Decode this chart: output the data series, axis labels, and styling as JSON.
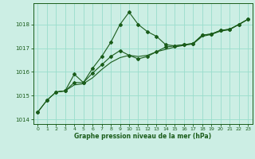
{
  "title": "Graphe pression niveau de la mer (hPa)",
  "bg_color": "#cceee4",
  "grid_color": "#99ddcc",
  "line_color": "#1a5c1a",
  "xlim": [
    -0.5,
    23.5
  ],
  "ylim": [
    1013.8,
    1018.9
  ],
  "yticks": [
    1014,
    1015,
    1016,
    1017,
    1018
  ],
  "xticks": [
    0,
    1,
    2,
    3,
    4,
    5,
    6,
    7,
    8,
    9,
    10,
    11,
    12,
    13,
    14,
    15,
    16,
    17,
    18,
    19,
    20,
    21,
    22,
    23
  ],
  "line1_x": [
    0,
    1,
    2,
    3,
    4,
    5,
    6,
    7,
    8,
    9,
    10,
    11,
    12,
    13,
    14,
    15,
    16,
    17,
    18,
    19,
    20,
    21,
    22,
    23
  ],
  "line1_y": [
    1014.3,
    1014.8,
    1015.15,
    1015.2,
    1015.9,
    1015.55,
    1016.15,
    1016.65,
    1017.25,
    1018.0,
    1018.52,
    1018.0,
    1017.7,
    1017.5,
    1017.15,
    1017.1,
    1017.15,
    1017.2,
    1017.55,
    1017.6,
    1017.75,
    1017.8,
    1018.0,
    1018.22
  ],
  "line2_x": [
    0,
    1,
    2,
    3,
    4,
    5,
    6,
    7,
    8,
    9,
    10,
    11,
    12,
    13,
    14,
    15,
    16,
    17,
    18,
    19,
    20,
    21,
    22,
    23
  ],
  "line2_y": [
    1014.3,
    1014.8,
    1015.15,
    1015.2,
    1015.55,
    1015.55,
    1015.95,
    1016.3,
    1016.65,
    1016.9,
    1016.7,
    1016.55,
    1016.65,
    1016.85,
    1017.05,
    1017.1,
    1017.15,
    1017.2,
    1017.55,
    1017.6,
    1017.75,
    1017.8,
    1018.0,
    1018.22
  ],
  "line3_x": [
    2,
    3,
    4,
    5,
    6,
    7,
    8,
    9,
    10,
    11,
    12,
    13,
    14,
    15,
    16,
    17,
    18,
    19,
    20,
    21,
    22,
    23
  ],
  "line3_y": [
    1015.15,
    1015.2,
    1015.45,
    1015.5,
    1015.75,
    1016.1,
    1016.4,
    1016.6,
    1016.7,
    1016.65,
    1016.7,
    1016.85,
    1016.95,
    1017.05,
    1017.12,
    1017.18,
    1017.5,
    1017.58,
    1017.72,
    1017.78,
    1018.0,
    1018.22
  ]
}
